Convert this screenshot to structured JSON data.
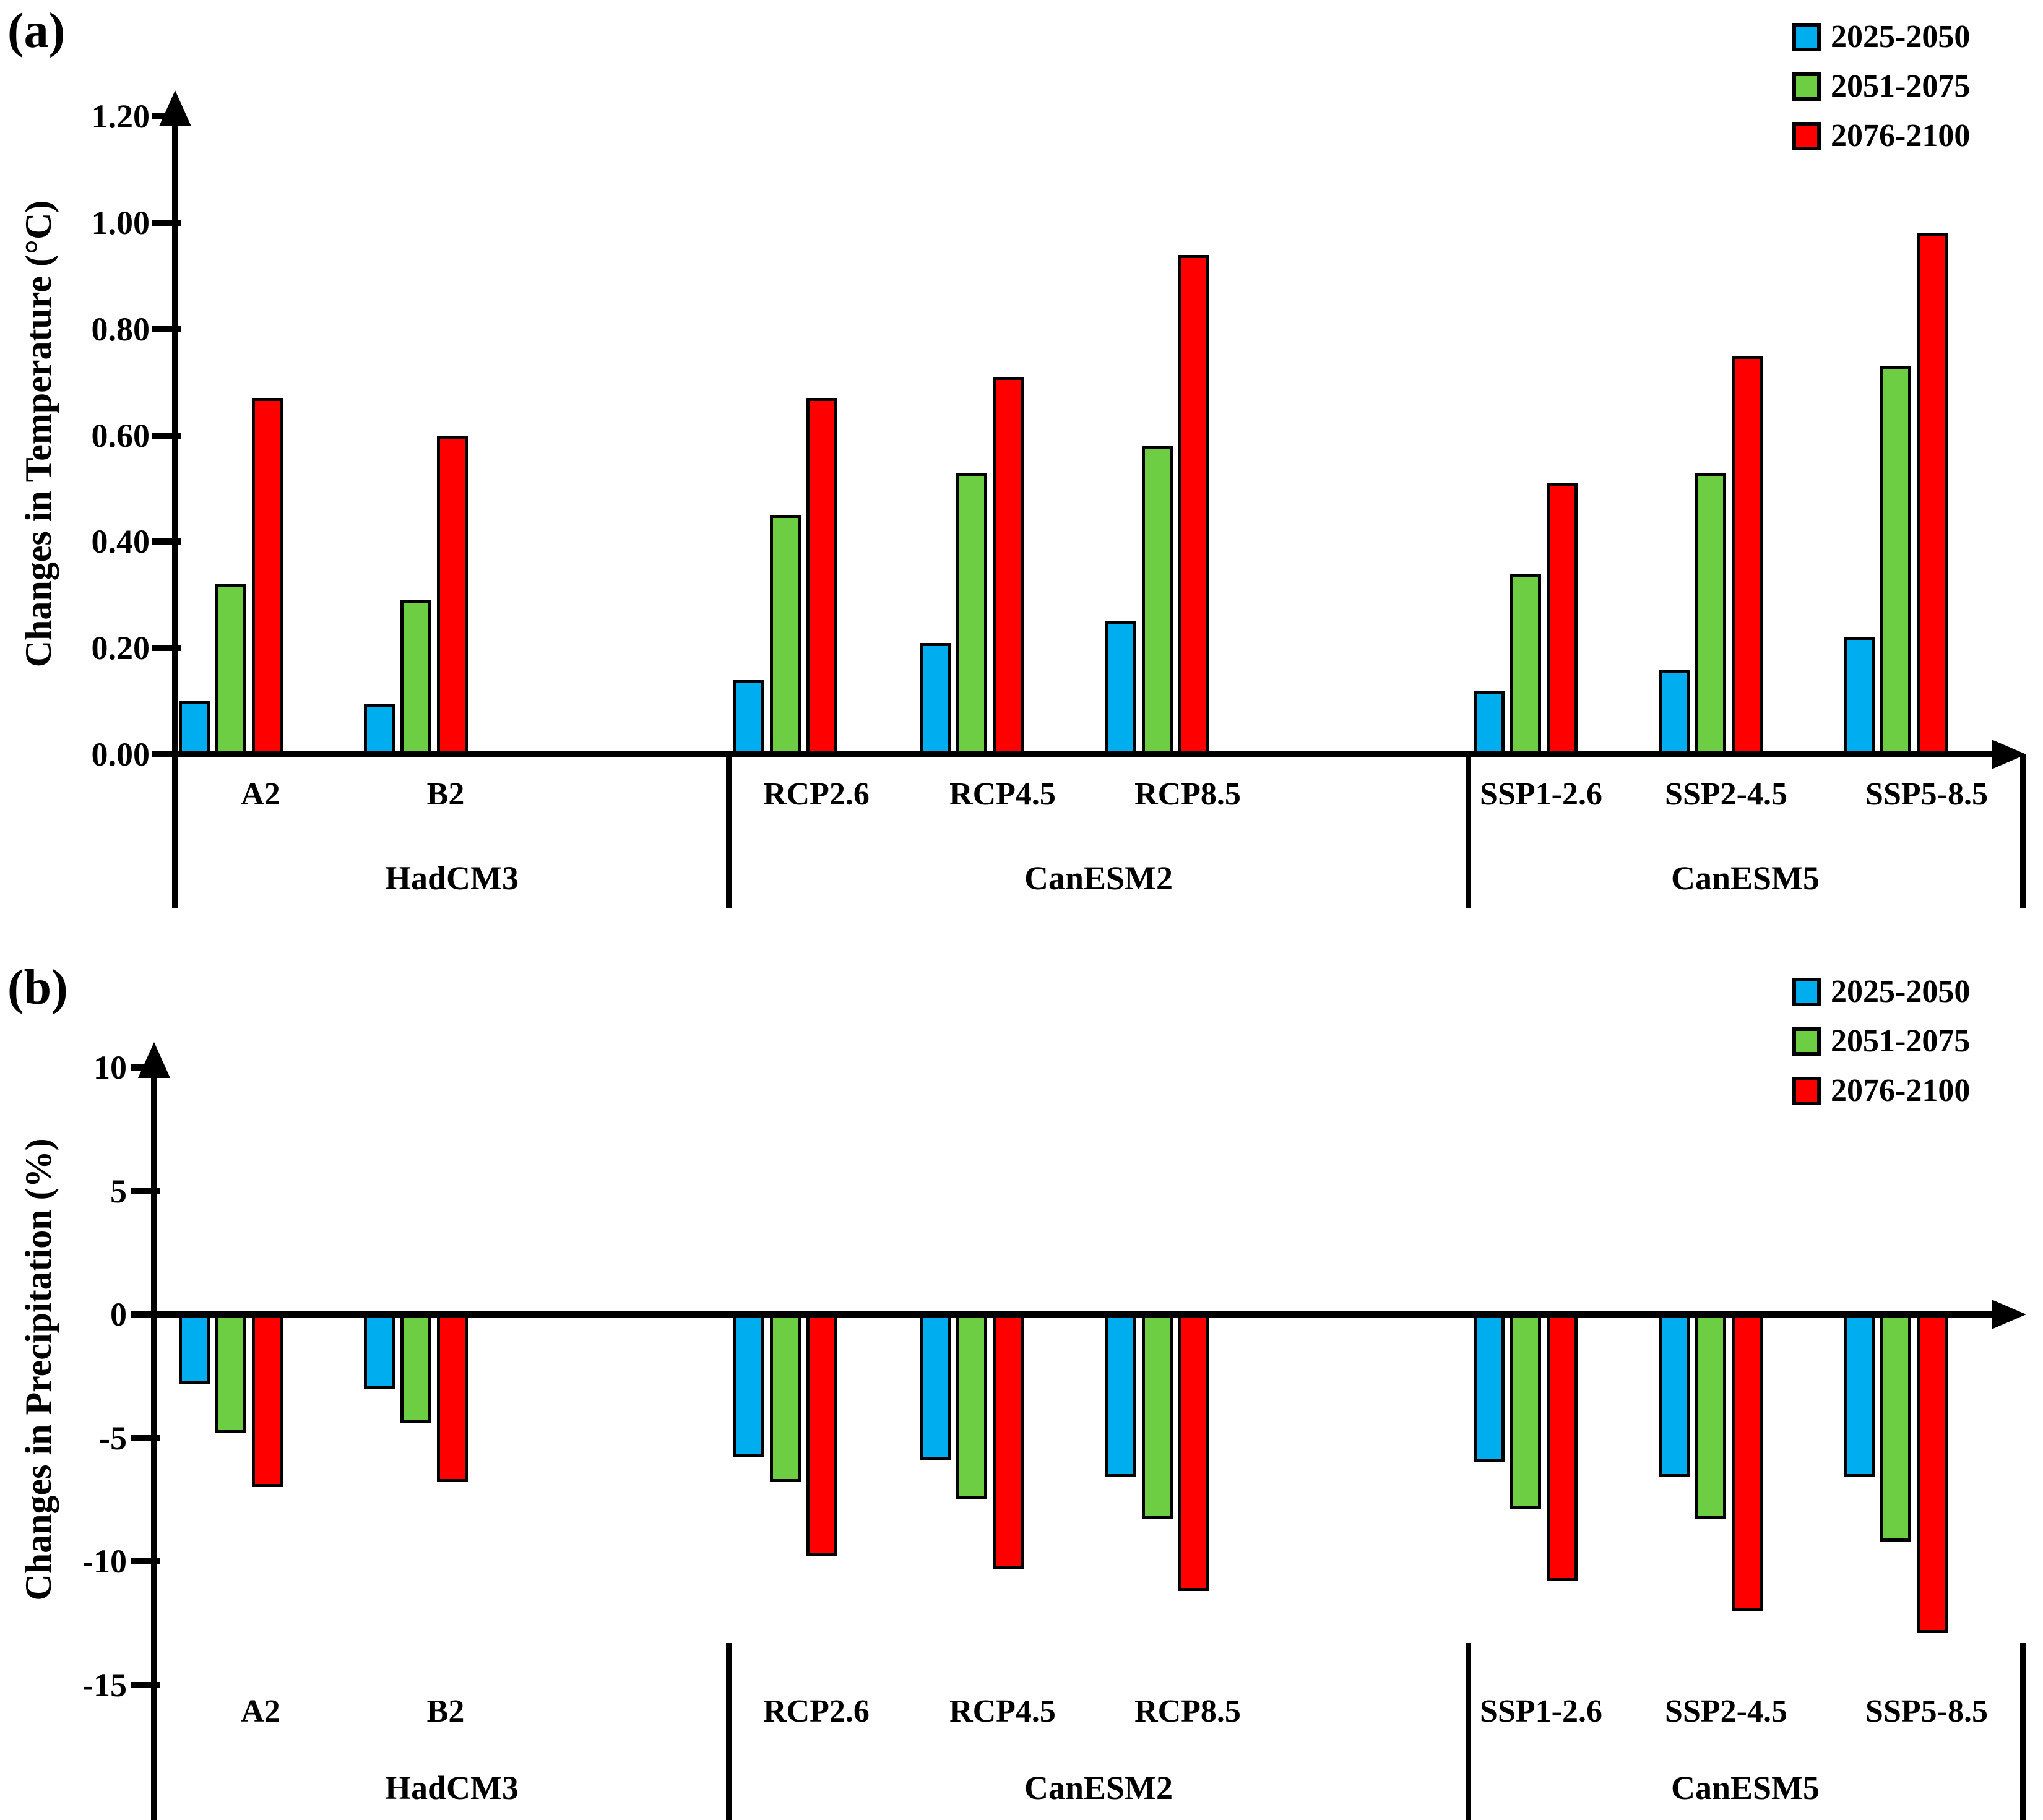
{
  "figure": {
    "panel_a_label": "(a)",
    "panel_b_label": "(b)"
  },
  "colors": {
    "period_2025_2050": "#00AEEF",
    "period_2051_2075": "#6DCE43",
    "period_2076_2100": "#FF0000",
    "axis": "#000000"
  },
  "chart_data": [
    {
      "type": "bar",
      "panel": "a",
      "ylabel": "Changes in Temperature (°C)",
      "ylim": [
        0.0,
        1.2
      ],
      "yticks": [
        1.2,
        1.0,
        0.8,
        0.6,
        0.4,
        0.2,
        0.0
      ],
      "ytick_labels": [
        "1.20",
        "1.00",
        "0.80",
        "0.60",
        "0.40",
        "0.20",
        "0.00"
      ],
      "grid": false,
      "legend_position": "top-right",
      "categories": [
        "A2",
        "B2",
        "RCP2.6",
        "RCP4.5",
        "RCP8.5",
        "SSP1-2.6",
        "SSP2-4.5",
        "SSP5-8.5"
      ],
      "groups": [
        {
          "name": "HadCM3",
          "categories": [
            "A2",
            "B2"
          ]
        },
        {
          "name": "CanESM2",
          "categories": [
            "RCP2.6",
            "RCP4.5",
            "RCP8.5"
          ]
        },
        {
          "name": "CanESM5",
          "categories": [
            "SSP1-2.6",
            "SSP2-4.5",
            "SSP5-8.5"
          ]
        }
      ],
      "series": [
        {
          "name": "2025-2050",
          "color": "#00AEEF",
          "values": [
            0.1,
            0.095,
            0.14,
            0.21,
            0.25,
            0.12,
            0.16,
            0.22
          ]
        },
        {
          "name": "2051-2075",
          "color": "#6DCE43",
          "values": [
            0.32,
            0.29,
            0.45,
            0.53,
            0.58,
            0.34,
            0.53,
            0.73
          ]
        },
        {
          "name": "2076-2100",
          "color": "#FF0000",
          "values": [
            0.67,
            0.6,
            0.67,
            0.71,
            0.94,
            0.51,
            0.75,
            0.98
          ]
        }
      ]
    },
    {
      "type": "bar",
      "panel": "b",
      "ylabel": "Changes in  Precipitation (%)",
      "ylim": [
        -15,
        10
      ],
      "yticks": [
        10,
        5,
        0,
        -5,
        -10,
        -15
      ],
      "ytick_labels": [
        "10",
        "5",
        "0",
        "-5",
        "-10",
        "-15"
      ],
      "grid": false,
      "legend_position": "top-right",
      "categories": [
        "A2",
        "B2",
        "RCP2.6",
        "RCP4.5",
        "RCP8.5",
        "SSP1-2.6",
        "SSP2-4.5",
        "SSP5-8.5"
      ],
      "groups": [
        {
          "name": "HadCM3",
          "categories": [
            "A2",
            "B2"
          ]
        },
        {
          "name": "CanESM2",
          "categories": [
            "RCP2.6",
            "RCP4.5",
            "RCP8.5"
          ]
        },
        {
          "name": "CanESM5",
          "categories": [
            "SSP1-2.6",
            "SSP2-4.5",
            "SSP5-8.5"
          ]
        }
      ],
      "series": [
        {
          "name": "2025-2050",
          "color": "#00AEEF",
          "values": [
            -2.8,
            -3.0,
            -5.8,
            -5.9,
            -6.6,
            -6.0,
            -6.6,
            -6.6
          ]
        },
        {
          "name": "2051-2075",
          "color": "#6DCE43",
          "values": [
            -4.8,
            -4.4,
            -6.8,
            -7.5,
            -8.3,
            -7.9,
            -8.3,
            -9.2
          ]
        },
        {
          "name": "2076-2100",
          "color": "#FF0000",
          "values": [
            -7.0,
            -6.8,
            -9.8,
            -10.3,
            -11.2,
            -10.8,
            -12.0,
            -12.9
          ]
        }
      ]
    }
  ]
}
